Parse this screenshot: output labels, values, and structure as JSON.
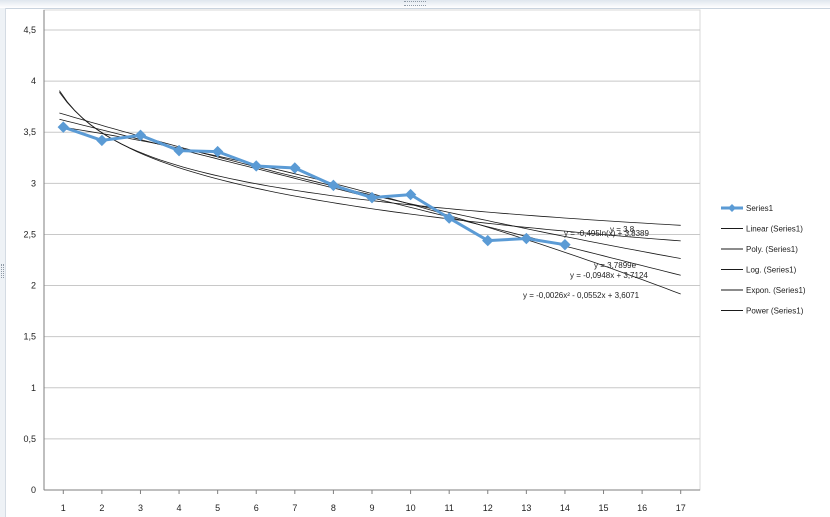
{
  "chart_data": {
    "type": "line",
    "x": [
      1,
      2,
      3,
      4,
      5,
      6,
      7,
      8,
      9,
      10,
      11,
      12,
      13,
      14
    ],
    "series": [
      {
        "name": "Series1",
        "values": [
          3.55,
          3.42,
          3.47,
          3.32,
          3.31,
          3.17,
          3.15,
          2.98,
          2.86,
          2.89,
          2.66,
          2.44,
          2.46,
          2.4
        ]
      }
    ],
    "trendlines": [
      {
        "name": "Linear (Series1)",
        "kind": "linear",
        "equation": "y = -0,0948x + 3,7124"
      },
      {
        "name": "Poly. (Series1)",
        "kind": "poly",
        "equation": "y = -0,0026x² - 0,0552x + 3,6071"
      },
      {
        "name": "Log. (Series1)",
        "kind": "log",
        "equation": "y = -0,495ln(x) + 3,8389"
      },
      {
        "name": "Expon. (Series1)",
        "kind": "expon",
        "equation": "y = 3,7899e"
      },
      {
        "name": "Power (Series1)",
        "kind": "power",
        "equation": "y = 3,8"
      }
    ],
    "xlim": [
      1,
      17
    ],
    "ylim": [
      0,
      4.5
    ],
    "x_tick_labels": [
      "1",
      "2",
      "3",
      "4",
      "5",
      "6",
      "7",
      "8",
      "9",
      "10",
      "11",
      "12",
      "13",
      "14",
      "15",
      "16",
      "17"
    ],
    "y_tick_labels": [
      "0",
      "0,5",
      "1",
      "1,5",
      "2",
      "2,5",
      "3",
      "3,5",
      "4",
      "4,5"
    ],
    "grid": "horizontal",
    "legend_position": "right",
    "colors": {
      "series": "#5b9bd5",
      "trend": "#1a1a1a",
      "grid": "#c8c8c8",
      "axis": "#7f7f7f"
    }
  }
}
